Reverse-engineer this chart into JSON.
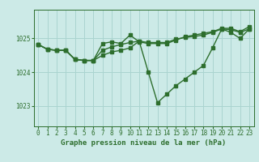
{
  "title": "",
  "xlabel": "Graphe pression niveau de la mer (hPa)",
  "background_color": "#cceae7",
  "grid_color": "#aad4d0",
  "line_color": "#2d6e2d",
  "x_ticks": [
    0,
    1,
    2,
    3,
    4,
    5,
    6,
    7,
    8,
    9,
    10,
    11,
    12,
    13,
    14,
    15,
    16,
    17,
    18,
    19,
    20,
    21,
    22,
    23
  ],
  "y_ticks": [
    1023,
    1024,
    1025
  ],
  "ylim": [
    1022.4,
    1025.85
  ],
  "xlim": [
    -0.5,
    23.5
  ],
  "series1": [
    1024.82,
    1024.68,
    1024.65,
    1024.65,
    1024.38,
    1024.35,
    1024.35,
    1024.85,
    1024.9,
    1024.85,
    1025.1,
    1024.9,
    1024.85,
    1024.85,
    1024.85,
    1024.95,
    1025.05,
    1025.1,
    1025.15,
    1025.2,
    1025.3,
    1025.3,
    1025.2,
    1025.35
  ],
  "series2": [
    1024.82,
    1024.68,
    1024.65,
    1024.65,
    1024.38,
    1024.35,
    1024.35,
    1024.65,
    1024.75,
    1024.82,
    1024.88,
    1024.92,
    1024.88,
    1024.88,
    1024.88,
    1024.98,
    1025.03,
    1025.06,
    1025.1,
    1025.18,
    1025.28,
    1025.26,
    1025.18,
    1025.28
  ],
  "series3": [
    1024.82,
    1024.68,
    1024.65,
    1024.65,
    1024.38,
    1024.35,
    1024.35,
    1024.5,
    1024.6,
    1024.65,
    1024.72,
    1024.92,
    1024.0,
    1023.1,
    1023.35,
    1023.6,
    1023.8,
    1024.0,
    1024.2,
    1024.72,
    1025.28,
    1025.18,
    1025.0,
    1025.28
  ],
  "marker_size": 2.5,
  "line_width": 1.0,
  "tick_fontsize": 5.5,
  "xlabel_fontsize": 6.5
}
